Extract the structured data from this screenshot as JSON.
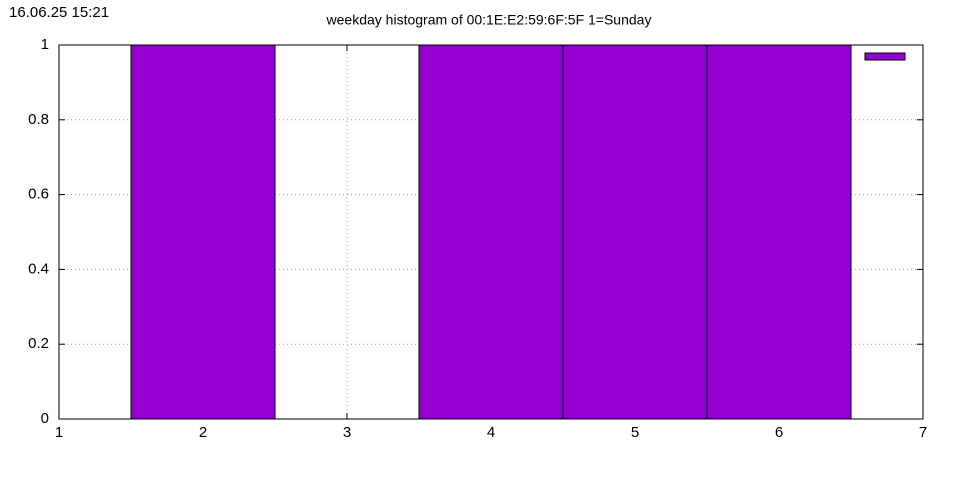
{
  "timestamp": "16.06.25 15:21",
  "chart_data": {
    "type": "bar",
    "title": "weekday histogram of 00:1E:E2:59:6F:5F 1=Sunday",
    "x": [
      2,
      4,
      5,
      6
    ],
    "values": [
      1,
      1,
      1,
      1
    ],
    "color": "#9400d3",
    "xlim": [
      1,
      7
    ],
    "xticks": [
      1,
      2,
      3,
      4,
      5,
      6,
      7
    ],
    "ylim": [
      0,
      1
    ],
    "yticks": [
      0,
      0.2,
      0.4,
      0.6,
      0.8,
      1
    ],
    "grid": true,
    "legend": "upper right"
  }
}
